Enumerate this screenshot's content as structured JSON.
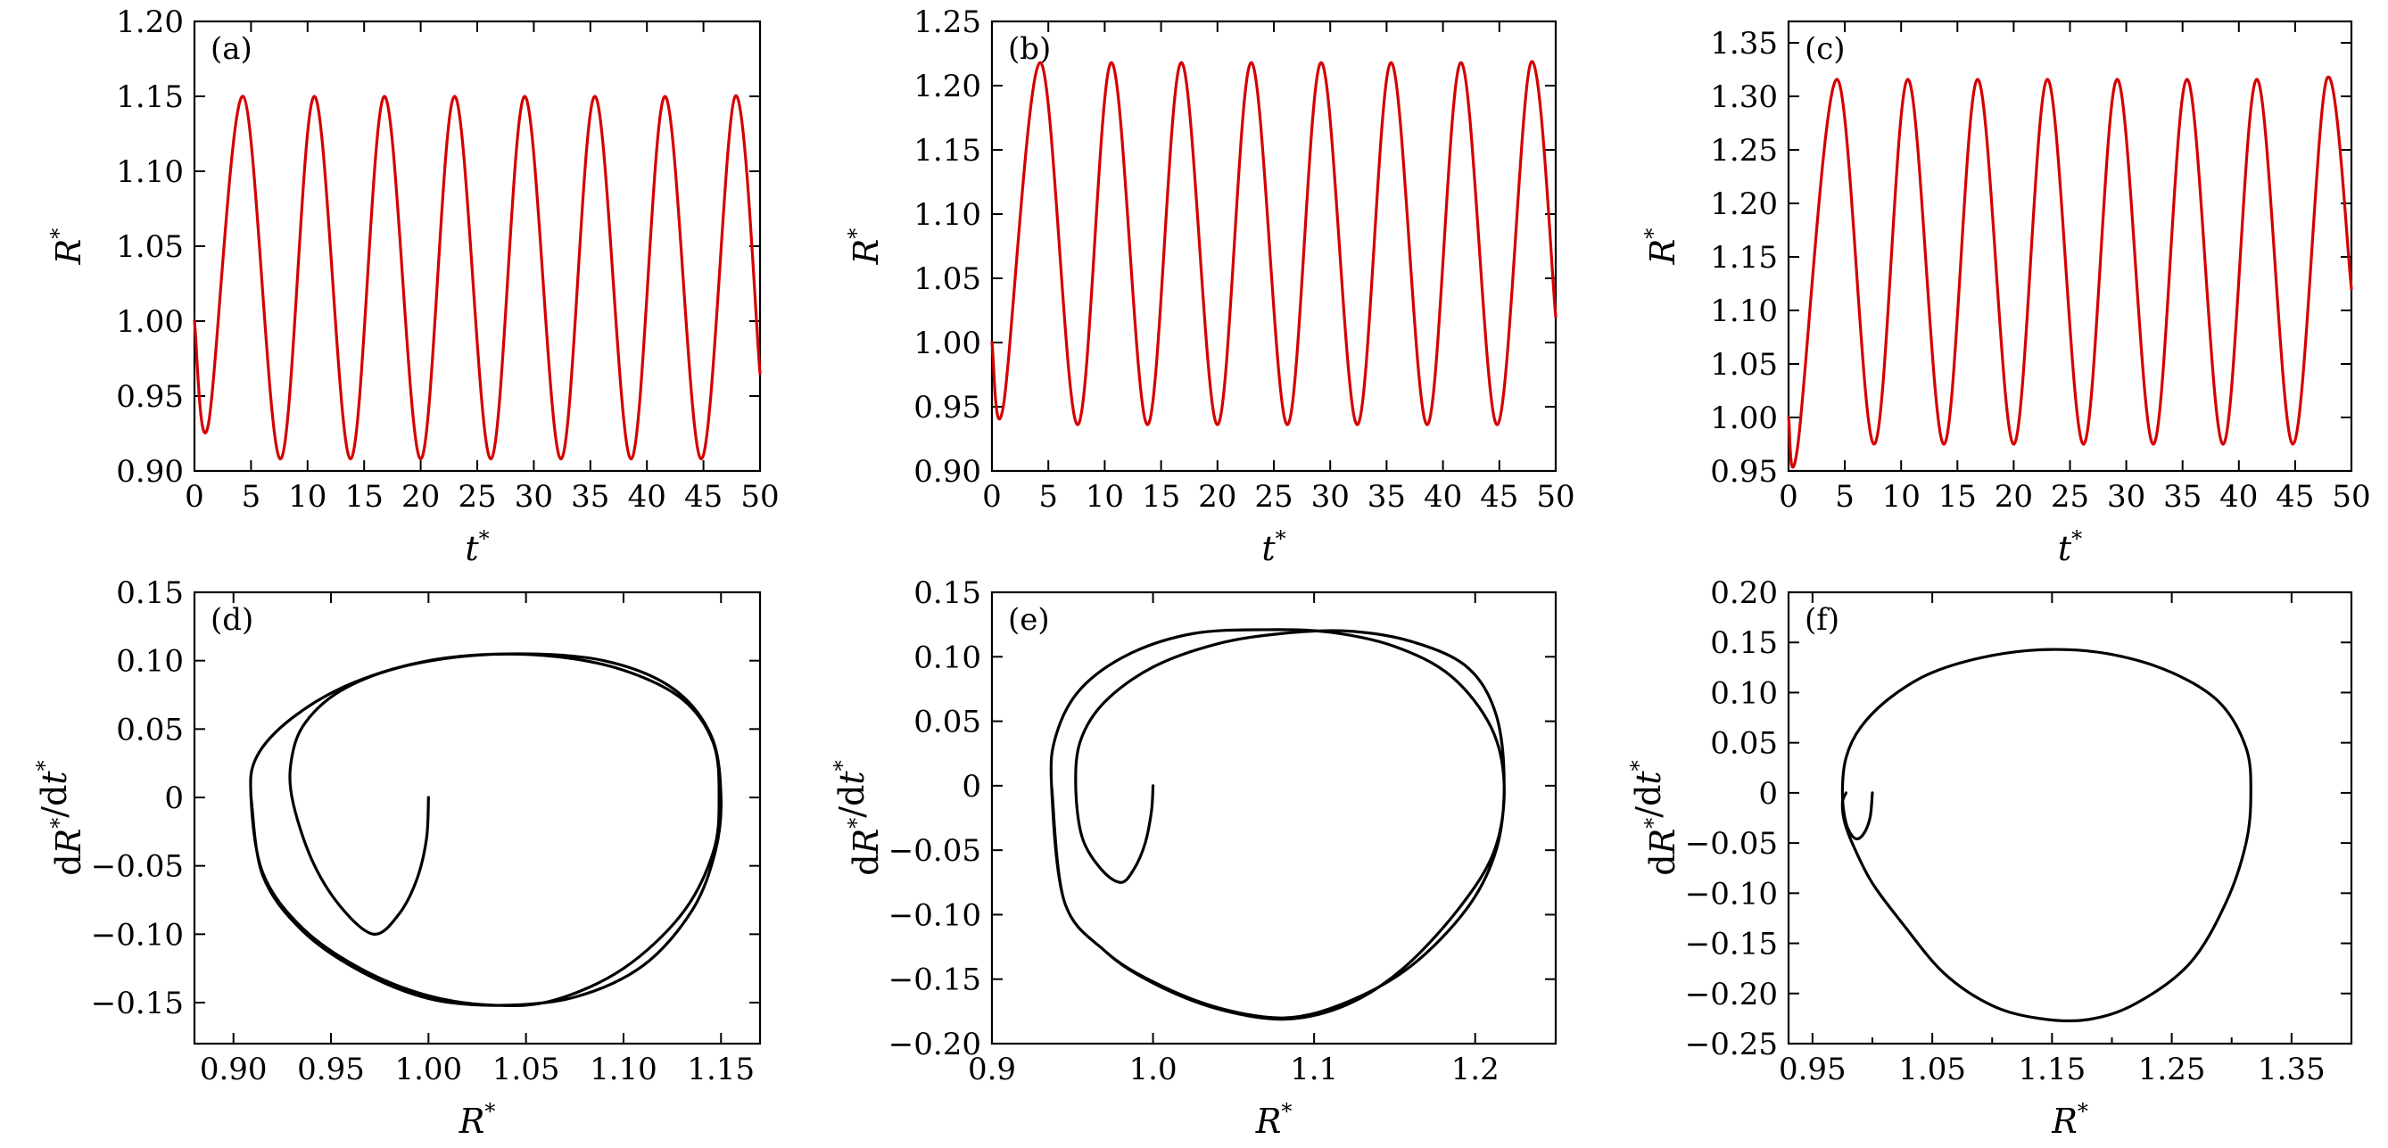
{
  "chart_data": [
    {
      "id": "a",
      "type": "line",
      "panel_label": "(a)",
      "xlabel": "t*",
      "ylabel": "R*",
      "xlim": [
        0,
        50
      ],
      "ylim": [
        0.9,
        1.2
      ],
      "xticks": [
        0,
        5,
        10,
        15,
        20,
        25,
        30,
        35,
        40,
        45,
        50
      ],
      "xtick_labels": [
        "0",
        "5",
        "10",
        "15",
        "20",
        "25",
        "30",
        "35",
        "40",
        "45",
        "50"
      ],
      "yticks": [
        0.9,
        0.95,
        1.0,
        1.05,
        1.1,
        1.15,
        1.2
      ],
      "ytick_labels": [
        "0.90",
        "0.95",
        "1.00",
        "1.05",
        "1.10",
        "1.15",
        "1.20"
      ],
      "color": "#d40000",
      "series": [
        {
          "x": [
            0,
            1.2,
            4.3,
            7.6,
            10.6,
            13.8,
            16.8,
            20.0,
            23.0,
            26.2,
            29.2,
            32.4,
            35.4,
            38.6,
            41.6,
            44.8,
            47.8,
            50
          ],
          "y": [
            1.0,
            0.93,
            1.15,
            0.908,
            1.15,
            0.908,
            1.15,
            0.908,
            1.15,
            0.908,
            1.15,
            0.908,
            1.15,
            0.908,
            1.15,
            0.908,
            1.15,
            0.965
          ]
        }
      ]
    },
    {
      "id": "b",
      "type": "line",
      "panel_label": "(b)",
      "xlabel": "t*",
      "ylabel": "R*",
      "xlim": [
        0,
        50
      ],
      "ylim": [
        0.9,
        1.25
      ],
      "xticks": [
        0,
        5,
        10,
        15,
        20,
        25,
        30,
        35,
        40,
        45,
        50
      ],
      "xtick_labels": [
        "0",
        "5",
        "10",
        "15",
        "20",
        "25",
        "30",
        "35",
        "40",
        "45",
        "50"
      ],
      "yticks": [
        0.9,
        0.95,
        1.0,
        1.05,
        1.1,
        1.15,
        1.2,
        1.25
      ],
      "ytick_labels": [
        "0.90",
        "0.95",
        "1.00",
        "1.05",
        "1.10",
        "1.15",
        "1.20",
        "1.25"
      ],
      "color": "#d40000",
      "series": [
        {
          "x": [
            0,
            1.0,
            4.3,
            7.6,
            10.6,
            13.8,
            16.8,
            20.0,
            23.0,
            26.2,
            29.2,
            32.4,
            35.4,
            38.6,
            41.6,
            44.8,
            47.8,
            50
          ],
          "y": [
            1.0,
            0.95,
            1.218,
            0.936,
            1.218,
            0.936,
            1.218,
            0.936,
            1.218,
            0.936,
            1.218,
            0.936,
            1.218,
            0.936,
            1.218,
            0.936,
            1.218,
            1.02
          ]
        }
      ]
    },
    {
      "id": "c",
      "type": "line",
      "panel_label": "(c)",
      "xlabel": "t*",
      "ylabel": "R*",
      "xlim": [
        0,
        50
      ],
      "ylim": [
        0.95,
        1.37
      ],
      "xticks": [
        0,
        5,
        10,
        15,
        20,
        25,
        30,
        35,
        40,
        45,
        50
      ],
      "xtick_labels": [
        "0",
        "5",
        "10",
        "15",
        "20",
        "25",
        "30",
        "35",
        "40",
        "45",
        "50"
      ],
      "yticks": [
        0.95,
        1.0,
        1.05,
        1.1,
        1.15,
        1.2,
        1.25,
        1.3,
        1.35
      ],
      "ytick_labels": [
        "0.95",
        "1.00",
        "1.05",
        "1.10",
        "1.15",
        "1.20",
        "1.25",
        "1.30",
        "1.35"
      ],
      "color": "#d40000",
      "series": [
        {
          "x": [
            0,
            0.8,
            4.3,
            7.6,
            10.6,
            13.8,
            16.8,
            20.0,
            23.0,
            26.2,
            29.2,
            32.4,
            35.4,
            38.6,
            41.6,
            44.8,
            47.8,
            50
          ],
          "y": [
            1.0,
            0.972,
            1.316,
            0.975,
            1.316,
            0.975,
            1.316,
            0.975,
            1.316,
            0.975,
            1.316,
            0.975,
            1.316,
            0.975,
            1.316,
            0.975,
            1.316,
            1.12
          ]
        }
      ]
    },
    {
      "id": "d",
      "type": "line",
      "panel_label": "(d)",
      "xlabel": "R*",
      "ylabel": "dR*/dt*",
      "xlim": [
        0.88,
        1.17
      ],
      "ylim": [
        -0.18,
        0.15
      ],
      "xticks": [
        0.9,
        0.95,
        1.0,
        1.05,
        1.1,
        1.15
      ],
      "xtick_labels": [
        "0.90",
        "0.95",
        "1.00",
        "1.05",
        "1.10",
        "1.15"
      ],
      "yticks": [
        -0.15,
        -0.1,
        -0.05,
        0,
        0.05,
        0.1,
        0.15
      ],
      "ytick_labels": [
        "−0.15",
        "−0.10",
        "−0.05",
        "0",
        "0.05",
        "0.10",
        "0.15"
      ],
      "color": "#000000",
      "series": [
        {
          "x": [
            1.0,
            0.999,
            0.994,
            0.985,
            0.972,
            0.955,
            0.94,
            0.93,
            0.93,
            0.937,
            0.955,
            0.985,
            1.025,
            1.065,
            1.1,
            1.13,
            1.146,
            1.149,
            1.146,
            1.13,
            1.1,
            1.065,
            1.035,
            1.0,
            0.965,
            0.935,
            0.915,
            0.909,
            0.912,
            0.93,
            0.96,
            1.0,
            1.045,
            1.09,
            1.125,
            1.145,
            1.15,
            1.147,
            1.135,
            1.11,
            1.075,
            1.036,
            1.0,
            0.965,
            0.935,
            0.915,
            0.909
          ],
          "y": [
            0,
            -0.03,
            -0.06,
            -0.085,
            -0.1,
            -0.08,
            -0.045,
            0,
            0.03,
            0.055,
            0.078,
            0.095,
            0.104,
            0.103,
            0.093,
            0.072,
            0.04,
            0,
            -0.04,
            -0.085,
            -0.125,
            -0.148,
            -0.152,
            -0.145,
            -0.125,
            -0.095,
            -0.055,
            0,
            0.03,
            0.058,
            0.083,
            0.1,
            0.105,
            0.1,
            0.08,
            0.045,
            0,
            -0.04,
            -0.083,
            -0.123,
            -0.146,
            -0.152,
            -0.147,
            -0.127,
            -0.097,
            -0.057,
            0
          ]
        }
      ]
    },
    {
      "id": "e",
      "type": "line",
      "panel_label": "(e)",
      "xlabel": "R*",
      "ylabel": "dR*/dt*",
      "xlim": [
        0.9,
        1.25
      ],
      "ylim": [
        -0.2,
        0.15
      ],
      "xticks": [
        0.9,
        1.0,
        1.1,
        1.2
      ],
      "xtick_labels": [
        "0.9",
        "1.0",
        "1.1",
        "1.2"
      ],
      "yticks": [
        -0.2,
        -0.15,
        -0.1,
        -0.05,
        0,
        0.05,
        0.1,
        0.15
      ],
      "ytick_labels": [
        "−0.20",
        "−0.15",
        "−0.10",
        "−0.05",
        "0",
        "0.05",
        "0.10",
        "0.15"
      ],
      "color": "#000000",
      "series": [
        {
          "x": [
            1.0,
            0.999,
            0.995,
            0.988,
            0.98,
            0.968,
            0.956,
            0.952,
            0.955,
            0.97,
            1.0,
            1.04,
            1.08,
            1.12,
            1.16,
            1.195,
            1.213,
            1.218,
            1.213,
            1.195,
            1.16,
            1.12,
            1.082,
            1.04,
            1.0,
            0.97,
            0.945,
            0.937,
            0.94,
            0.955,
            0.985,
            1.025,
            1.07,
            1.11,
            1.15,
            1.185,
            1.21,
            1.218,
            1.212,
            1.19,
            1.155,
            1.12,
            1.082,
            1.04,
            1.0,
            0.97,
            0.945,
            0.937
          ],
          "y": [
            0,
            -0.02,
            -0.045,
            -0.065,
            -0.075,
            -0.065,
            -0.04,
            0,
            0.035,
            0.065,
            0.092,
            0.11,
            0.118,
            0.12,
            0.112,
            0.092,
            0.055,
            0,
            -0.05,
            -0.095,
            -0.14,
            -0.168,
            -0.18,
            -0.172,
            -0.152,
            -0.128,
            -0.09,
            0,
            0.04,
            0.075,
            0.102,
            0.118,
            0.121,
            0.119,
            0.108,
            0.085,
            0.045,
            0,
            -0.05,
            -0.095,
            -0.142,
            -0.17,
            -0.181,
            -0.173,
            -0.153,
            -0.128,
            -0.09,
            0
          ]
        }
      ]
    },
    {
      "id": "f",
      "type": "line",
      "panel_label": "(f)",
      "xlabel": "R*",
      "ylabel": "dR*/dt*",
      "xlim": [
        0.93,
        1.4
      ],
      "ylim": [
        -0.25,
        0.2
      ],
      "xticks": [
        0.95,
        1.05,
        1.15,
        1.25,
        1.35
      ],
      "xtick_labels": [
        "0.95",
        "1.05",
        "1.15",
        "1.25",
        "1.35"
      ],
      "minor_xticks": [
        1.0,
        1.1,
        1.2,
        1.3
      ],
      "yticks": [
        -0.25,
        -0.2,
        -0.15,
        -0.1,
        -0.05,
        0,
        0.05,
        0.1,
        0.15,
        0.2
      ],
      "ytick_labels": [
        "−0.25",
        "−0.20",
        "−0.15",
        "−0.10",
        "−0.05",
        "0",
        "0.05",
        "0.10",
        "0.15",
        "0.20"
      ],
      "color": "#000000",
      "series": [
        {
          "x": [
            1.0,
            0.998,
            0.992,
            0.985,
            0.978,
            0.975,
            0.978,
            0.99,
            1.015,
            1.05,
            1.1,
            1.15,
            1.2,
            1.25,
            1.29,
            1.312,
            1.316,
            1.312,
            1.295,
            1.265,
            1.22,
            1.18,
            1.14,
            1.1,
            1.06,
            1.025,
            1.0,
            0.985,
            0.977,
            0.975,
            0.978
          ],
          "y": [
            0,
            -0.025,
            -0.042,
            -0.045,
            -0.03,
            0,
            0.035,
            0.065,
            0.095,
            0.12,
            0.137,
            0.143,
            0.138,
            0.12,
            0.09,
            0.045,
            0,
            -0.05,
            -0.11,
            -0.17,
            -0.21,
            -0.226,
            -0.225,
            -0.212,
            -0.18,
            -0.13,
            -0.09,
            -0.055,
            -0.03,
            -0.01,
            0
          ]
        }
      ]
    }
  ]
}
